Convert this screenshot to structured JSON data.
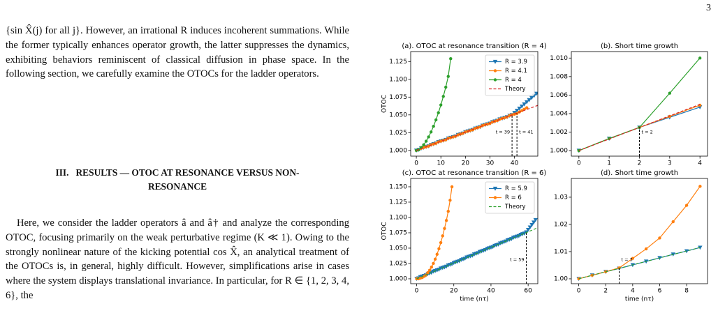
{
  "page_number": "3",
  "paragraph_1": "{sin X̂(j) for all j}. However, an irrational R induces incoherent summations. While the former typically enhances operator growth, the latter suppresses the dynamics, exhibiting behaviors reminiscent of classical diffusion in phase space. In the following section, we carefully examine the OTOCs for the ladder operators.",
  "section": {
    "number": "III.",
    "title": "RESULTS — OTOC AT RESONANCE VERSUS NON-RESONANCE"
  },
  "paragraph_2": "Here, we consider the ladder operators â and â† and analyze the corresponding OTOC, focusing primarily on the weak perturbative regime (K ≪ 1). Owing to the strongly nonlinear nature of the kicking potential cos X̂, an analytical treatment of the OTOCs is, in general, highly difficult. However, simplifications arise in cases where the system displays translational invariance. In particular, for R ∈ {1, 2, 3, 4, 6}, the",
  "chart_data": [
    {
      "type": "line",
      "title": "(a). OTOC at resonance transition (R = 4)",
      "ylabel": "OTOC",
      "xlim": [
        -2.3,
        49.5
      ],
      "xticks": [
        0,
        10,
        20,
        30,
        40
      ],
      "ylim": [
        0.992,
        1.139
      ],
      "yticks": [
        {
          "value": 1.0,
          "label": "1.000"
        },
        {
          "value": 1.025,
          "label": "1.025"
        },
        {
          "value": 1.05,
          "label": "1.050"
        },
        {
          "value": 1.075,
          "label": "1.075"
        },
        {
          "value": 1.1,
          "label": "1.100"
        },
        {
          "value": 1.125,
          "label": "1.125"
        }
      ],
      "legend": "upper right",
      "series": [
        {
          "name": "R = 3.9",
          "color": "#1f77b4",
          "marker": "v",
          "linestyle": "solid",
          "x": [
            0,
            1,
            2,
            3,
            4,
            5,
            6,
            7,
            8,
            9,
            10,
            11,
            12,
            13,
            14,
            15,
            16,
            17,
            18,
            19,
            20,
            21,
            22,
            23,
            24,
            25,
            26,
            27,
            28,
            29,
            30,
            31,
            32,
            33,
            34,
            35,
            36,
            37,
            38,
            39,
            40,
            41,
            42,
            43,
            44,
            45,
            46,
            47,
            48,
            49
          ],
          "values": [
            1.0,
            1.001,
            1.003,
            1.004,
            1.005,
            1.006,
            1.008,
            1.009,
            1.01,
            1.012,
            1.013,
            1.014,
            1.015,
            1.017,
            1.018,
            1.019,
            1.02,
            1.022,
            1.023,
            1.024,
            1.026,
            1.027,
            1.028,
            1.029,
            1.031,
            1.032,
            1.033,
            1.035,
            1.036,
            1.037,
            1.038,
            1.04,
            1.041,
            1.042,
            1.044,
            1.045,
            1.046,
            1.047,
            1.049,
            1.05,
            1.053,
            1.056,
            1.059,
            1.062,
            1.065,
            1.068,
            1.071,
            1.074,
            1.077,
            1.08
          ]
        },
        {
          "name": "R = 4.1",
          "color": "#ff7f0e",
          "marker": "o",
          "linestyle": "solid",
          "x": [
            0,
            1,
            2,
            3,
            4,
            5,
            6,
            7,
            8,
            9,
            10,
            11,
            12,
            13,
            14,
            15,
            16,
            17,
            18,
            19,
            20,
            21,
            22,
            23,
            24,
            25,
            26,
            27,
            28,
            29,
            30,
            31,
            32,
            33,
            34,
            35,
            36,
            37,
            38,
            39,
            40,
            41,
            42,
            43,
            44,
            45
          ],
          "values": [
            1.0,
            1.001,
            1.003,
            1.004,
            1.005,
            1.006,
            1.008,
            1.009,
            1.01,
            1.012,
            1.013,
            1.014,
            1.015,
            1.017,
            1.018,
            1.019,
            1.02,
            1.022,
            1.023,
            1.024,
            1.026,
            1.027,
            1.028,
            1.029,
            1.031,
            1.032,
            1.033,
            1.035,
            1.036,
            1.037,
            1.038,
            1.04,
            1.041,
            1.042,
            1.044,
            1.045,
            1.046,
            1.047,
            1.049,
            1.05,
            1.051,
            1.052,
            1.054,
            1.056,
            1.058,
            1.06
          ]
        },
        {
          "name": "R = 4",
          "color": "#2ca02c",
          "marker": "o",
          "linestyle": "solid",
          "x": [
            0,
            1,
            2,
            3,
            4,
            5,
            6,
            7,
            8,
            9,
            10,
            11,
            12,
            13,
            14
          ],
          "values": [
            1.0,
            1.001,
            1.004,
            1.008,
            1.013,
            1.019,
            1.026,
            1.034,
            1.043,
            1.053,
            1.064,
            1.076,
            1.089,
            1.104,
            1.129
          ]
        },
        {
          "name": "Theory",
          "color": "#d62728",
          "marker": null,
          "linestyle": "dashed",
          "x": [
            0,
            50
          ],
          "values": [
            1.0,
            1.064
          ]
        }
      ],
      "annotations": [
        {
          "text": "t = 39",
          "x": 39,
          "y": 1.05
        },
        {
          "text": "t = 41",
          "x": 41,
          "y": 1.052
        }
      ]
    },
    {
      "type": "line",
      "title": "(b). Short time growth",
      "xlim": [
        -0.25,
        4.25
      ],
      "xticks": [
        0,
        1,
        2,
        3,
        4
      ],
      "ylim": [
        0.9994,
        1.0107
      ],
      "yticks": [
        {
          "value": 1.0,
          "label": "1.000"
        },
        {
          "value": 1.002,
          "label": "1.002"
        },
        {
          "value": 1.004,
          "label": "1.004"
        },
        {
          "value": 1.006,
          "label": "1.006"
        },
        {
          "value": 1.008,
          "label": "1.008"
        },
        {
          "value": 1.01,
          "label": "1.010"
        }
      ],
      "series": [
        {
          "color": "#1f77b4",
          "marker": "v",
          "linestyle": "solid",
          "x": [
            0,
            1,
            2,
            3,
            4
          ],
          "values": [
            1.0,
            1.0013,
            1.0025,
            1.0036,
            1.0047
          ]
        },
        {
          "color": "#ff7f0e",
          "marker": "o",
          "linestyle": "solid",
          "x": [
            0,
            1,
            2,
            3,
            4
          ],
          "values": [
            1.0,
            1.0013,
            1.0025,
            1.0037,
            1.0049
          ]
        },
        {
          "color": "#2ca02c",
          "marker": "o",
          "linestyle": "solid",
          "x": [
            0,
            1,
            2,
            3,
            4
          ],
          "values": [
            1.0,
            1.0013,
            1.0025,
            1.0062,
            1.01
          ]
        },
        {
          "color": "#d62728",
          "marker": null,
          "linestyle": "dashed",
          "x": [
            0,
            4
          ],
          "values": [
            1.0,
            1.005
          ]
        }
      ],
      "annotations": [
        {
          "text": "t = 2",
          "x": 2,
          "y": 1.0025
        }
      ]
    },
    {
      "type": "line",
      "title": "(c). OTOC at resonance transition (R = 6)",
      "ylabel": "OTOC",
      "xlabel": "time (nτ)",
      "xlim": [
        -3.2,
        65.2
      ],
      "xticks": [
        0,
        20,
        40,
        60
      ],
      "ylim": [
        0.992,
        1.1636
      ],
      "yticks": [
        {
          "value": 1.0,
          "label": "1.000"
        },
        {
          "value": 1.025,
          "label": "1.025"
        },
        {
          "value": 1.05,
          "label": "1.050"
        },
        {
          "value": 1.075,
          "label": "1.075"
        },
        {
          "value": 1.1,
          "label": "1.100"
        },
        {
          "value": 1.125,
          "label": "1.125"
        },
        {
          "value": 1.15,
          "label": "1.150"
        }
      ],
      "legend": "upper right",
      "series": [
        {
          "name": "R = 5.9",
          "color": "#1f77b4",
          "marker": "v",
          "linestyle": "solid",
          "x": [
            0,
            1,
            2,
            3,
            4,
            5,
            6,
            7,
            8,
            9,
            10,
            11,
            12,
            13,
            14,
            15,
            16,
            17,
            18,
            19,
            20,
            21,
            22,
            23,
            24,
            25,
            26,
            27,
            28,
            29,
            30,
            31,
            32,
            33,
            34,
            35,
            36,
            37,
            38,
            39,
            40,
            41,
            42,
            43,
            44,
            45,
            46,
            47,
            48,
            49,
            50,
            51,
            52,
            53,
            54,
            55,
            56,
            57,
            58,
            59,
            60,
            61,
            62,
            63,
            64
          ],
          "values": [
            1.0,
            1.001,
            1.003,
            1.004,
            1.005,
            1.006,
            1.008,
            1.009,
            1.01,
            1.012,
            1.013,
            1.014,
            1.015,
            1.017,
            1.018,
            1.019,
            1.02,
            1.022,
            1.023,
            1.024,
            1.026,
            1.027,
            1.028,
            1.029,
            1.031,
            1.032,
            1.033,
            1.035,
            1.036,
            1.037,
            1.038,
            1.04,
            1.041,
            1.042,
            1.044,
            1.045,
            1.046,
            1.047,
            1.049,
            1.05,
            1.051,
            1.052,
            1.054,
            1.055,
            1.056,
            1.058,
            1.059,
            1.06,
            1.061,
            1.063,
            1.064,
            1.065,
            1.067,
            1.068,
            1.069,
            1.07,
            1.072,
            1.073,
            1.074,
            1.076,
            1.08,
            1.084,
            1.088,
            1.092,
            1.096
          ]
        },
        {
          "name": "R = 6",
          "color": "#ff7f0e",
          "marker": "o",
          "linestyle": "solid",
          "x": [
            0,
            1,
            2,
            3,
            4,
            5,
            6,
            7,
            8,
            9,
            10,
            11,
            12,
            13,
            14,
            15,
            16,
            17,
            18,
            19
          ],
          "values": [
            1.0,
            1.0,
            1.001,
            1.002,
            1.004,
            1.006,
            1.01,
            1.014,
            1.019,
            1.025,
            1.032,
            1.04,
            1.049,
            1.059,
            1.07,
            1.082,
            1.095,
            1.11,
            1.128,
            1.15
          ]
        },
        {
          "name": "Theory",
          "color": "#2ca02c",
          "marker": null,
          "linestyle": "dashed",
          "x": [
            0,
            65
          ],
          "values": [
            1.0,
            1.083
          ]
        }
      ],
      "annotations": [
        {
          "text": "t = 59",
          "x": 59,
          "y": 1.076
        }
      ]
    },
    {
      "type": "line",
      "title": "(d). Short time growth",
      "xlabel": "time (nτ)",
      "xlim": [
        -0.55,
        9.55
      ],
      "xticks": [
        0,
        2,
        4,
        6,
        8
      ],
      "ylim": [
        0.9982,
        1.0369
      ],
      "yticks": [
        {
          "value": 1.0,
          "label": "1.00"
        },
        {
          "value": 1.01,
          "label": "1.01"
        },
        {
          "value": 1.02,
          "label": "1.02"
        },
        {
          "value": 1.03,
          "label": "1.03"
        }
      ],
      "series": [
        {
          "color": "#1f77b4",
          "marker": "v",
          "linestyle": "solid",
          "x": [
            0,
            1,
            2,
            3,
            4,
            5,
            6,
            7,
            8,
            9
          ],
          "values": [
            1.0,
            1.0013,
            1.0026,
            1.0038,
            1.0051,
            1.0064,
            1.0077,
            1.009,
            1.0102,
            1.0115
          ]
        },
        {
          "color": "#ff7f0e",
          "marker": "o",
          "linestyle": "solid",
          "x": [
            0,
            1,
            2,
            3,
            4,
            5,
            6,
            7,
            8,
            9
          ],
          "values": [
            1.0,
            1.0013,
            1.0026,
            1.004,
            1.0075,
            1.011,
            1.015,
            1.021,
            1.027,
            1.034
          ]
        },
        {
          "color": "#2ca02c",
          "marker": null,
          "linestyle": "dashed",
          "x": [
            0,
            9
          ],
          "values": [
            1.0,
            1.0115
          ]
        }
      ],
      "annotations": [
        {
          "text": "t = 3",
          "x": 3,
          "y": 1.0038
        }
      ]
    }
  ]
}
